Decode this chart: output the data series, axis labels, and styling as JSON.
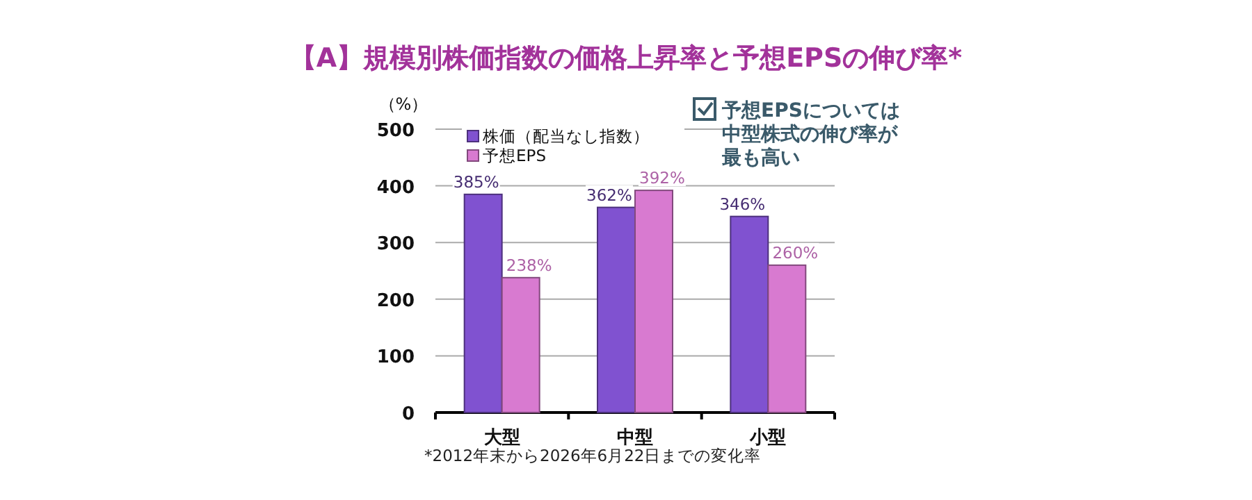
{
  "chart_data": {
    "type": "bar",
    "title": "【A】規模別株価指数の価格上昇率と予想EPSの伸び率*",
    "ylabel": "（%）",
    "categories": [
      "大型",
      "中型",
      "小型"
    ],
    "series": [
      {
        "name": "株価（配当なし指数）",
        "color": "#8052d0",
        "values": [
          385,
          362,
          346
        ],
        "value_labels": [
          "385%",
          "362%",
          "346%"
        ]
      },
      {
        "name": "予想EPS",
        "color": "#d87ad0",
        "values": [
          238,
          392,
          260
        ],
        "value_labels": [
          "238%",
          "392%",
          "260%"
        ]
      }
    ],
    "ylim": [
      0,
      500
    ],
    "yticks": [
      0,
      100,
      200,
      300,
      400,
      500
    ],
    "grid": "y",
    "legend": "top",
    "annotations": [
      "予想EPSについては",
      "中型株式の伸び率が",
      "最も高い",
      "*2012年末から2026年6月22日までの変化率"
    ]
  }
}
